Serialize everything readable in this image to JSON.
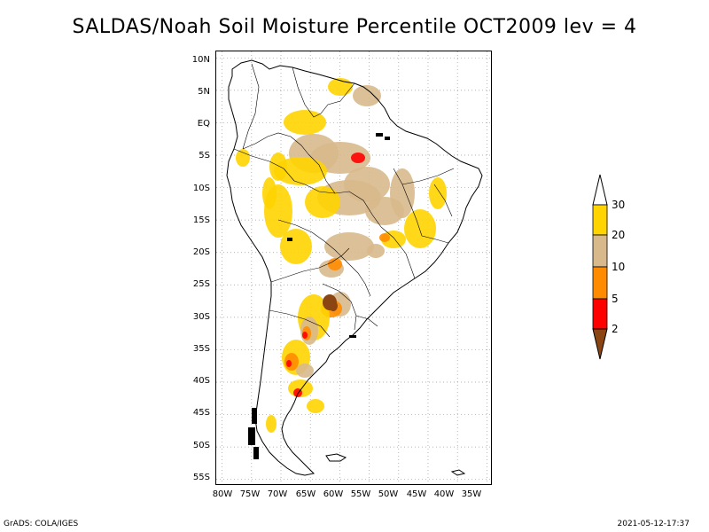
{
  "title": "SALDAS/Noah Soil Moisture Percentile OCT2009 lev = 4",
  "map": {
    "lat_ticks": [
      "10N",
      "5N",
      "EQ",
      "5S",
      "10S",
      "15S",
      "20S",
      "25S",
      "30S",
      "35S",
      "40S",
      "45S",
      "50S",
      "55S"
    ],
    "lon_ticks": [
      "80W",
      "75W",
      "70W",
      "65W",
      "60W",
      "55W",
      "50W",
      "45W",
      "40W",
      "35W"
    ],
    "lat_range": [
      -56,
      11
    ],
    "lon_range": [
      -81,
      -34
    ],
    "grid": true,
    "legend_placement": "right"
  },
  "legend": {
    "levels": [
      "30",
      "20",
      "10",
      "5",
      "2"
    ],
    "colors": {
      "above_30": "#ffffff",
      "20_30": "#ffd400",
      "10_20": "#d8b98c",
      "5_10": "#ff8c00",
      "2_5": "#ff0000",
      "below_2": "#8b4513"
    }
  },
  "footer": {
    "left": "GrADS: COLA/IGES",
    "right": "2021-05-12-17:37"
  }
}
